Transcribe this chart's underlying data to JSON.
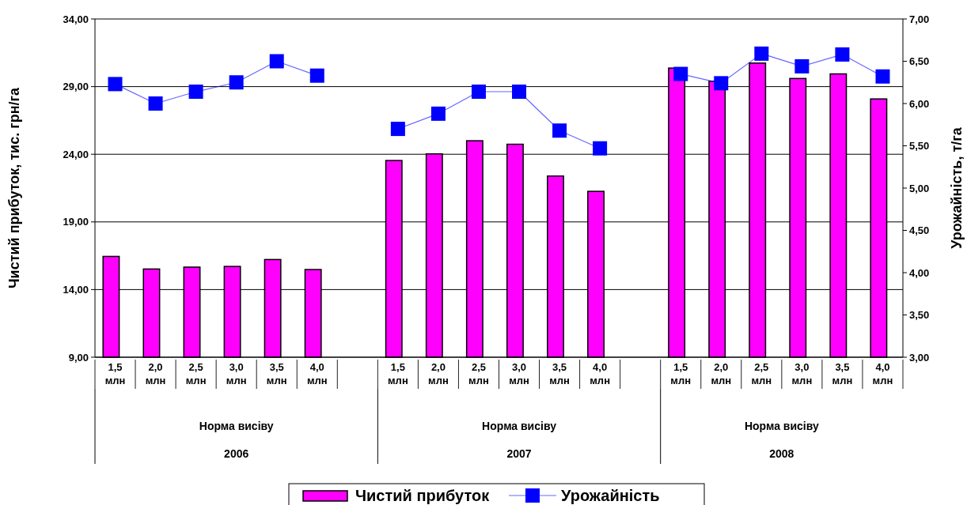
{
  "chart_data": {
    "type": "bar",
    "ylabel": "Чистий прибуток, тис. грн/га",
    "y2label": "Урожайність, т/га",
    "categories": [
      "1,5 млн",
      "2,0 млн",
      "2,5 млн",
      "3,0 млн",
      "3,5 млн",
      "4,0 млн",
      null,
      "1,5 млн",
      "2,0 млн",
      "2,5 млн",
      "3,0 млн",
      "3,5 млн",
      "4,0 млн",
      null,
      "1,5 млн",
      "2,0 млн",
      "2,5 млн",
      "3,0 млн",
      "3,5 млн",
      "4,0 млн"
    ],
    "series": [
      {
        "name": "Чистий прибуток",
        "color": "#ff00ff",
        "values": [
          16.45,
          15.52,
          15.66,
          15.71,
          16.22,
          15.48,
          null,
          23.54,
          24.03,
          25.0,
          24.74,
          22.39,
          21.26,
          null,
          30.37,
          29.4,
          30.74,
          29.6,
          29.94,
          28.09
        ]
      },
      {
        "name": "Урожайність",
        "type": "line",
        "axis": "y2",
        "color": "#0000ff",
        "marker": "square",
        "values": [
          6.23,
          6.0,
          6.14,
          6.25,
          6.5,
          6.33,
          null,
          5.7,
          5.88,
          6.14,
          6.14,
          5.68,
          5.47,
          null,
          6.35,
          6.24,
          6.59,
          6.44,
          6.58,
          6.32
        ]
      }
    ],
    "ylim": [
      9,
      34
    ],
    "yticks": [
      {
        "value": 9,
        "label": "9,00"
      },
      {
        "value": 14,
        "label": "14,00"
      },
      {
        "value": 19,
        "label": "19,00"
      },
      {
        "value": 24,
        "label": "24,00"
      },
      {
        "value": 29,
        "label": "29,00"
      },
      {
        "value": 34,
        "label": "34,00"
      }
    ],
    "y2lim": [
      3,
      7
    ],
    "y2ticks": [
      {
        "value": 3,
        "label": "3,00"
      },
      {
        "value": 3.5,
        "label": "3,50"
      },
      {
        "value": 4,
        "label": "4,00"
      },
      {
        "value": 4.5,
        "label": "4,50"
      },
      {
        "value": 5,
        "label": "5,00"
      },
      {
        "value": 5.5,
        "label": "5,50"
      },
      {
        "value": 6,
        "label": "6,00"
      },
      {
        "value": 6.5,
        "label": "6,50"
      },
      {
        "value": 7,
        "label": "7,00"
      }
    ],
    "grid": "y",
    "legend": "bottom",
    "annotations": [
      "Норма висіву",
      "Норма висіву",
      "Норма висіву",
      "2006",
      "2007",
      "2008"
    ]
  }
}
